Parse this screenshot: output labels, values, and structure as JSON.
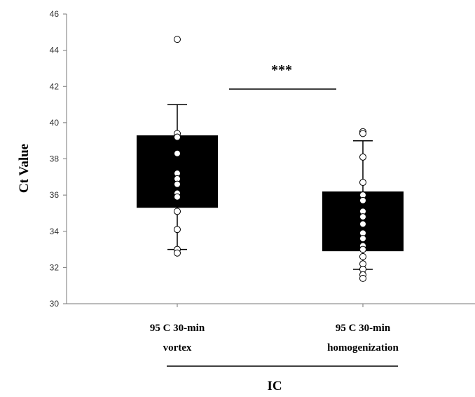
{
  "chart_data": {
    "type": "box",
    "ylabel": "Ct Value",
    "xlabel": "IC",
    "ylim": [
      30,
      46
    ],
    "yticks": [
      30,
      32,
      34,
      36,
      38,
      40,
      42,
      44,
      46
    ],
    "categories": [
      {
        "line1": "95 C 30-min",
        "line2": "vortex"
      },
      {
        "line1": "95 C 30-min",
        "line2": "homogenization"
      }
    ],
    "boxes": [
      {
        "q1": 35.3,
        "q3": 39.3,
        "whisker_low": 33.0,
        "whisker_high": 41.0
      },
      {
        "q1": 32.9,
        "q3": 36.2,
        "whisker_low": 31.9,
        "whisker_high": 39.0
      }
    ],
    "points": [
      [
        44.6,
        39.4,
        39.2,
        38.3,
        37.2,
        36.9,
        36.6,
        36.1,
        35.9,
        35.1,
        34.1,
        33.0,
        32.8
      ],
      [
        39.5,
        39.4,
        38.1,
        36.7,
        36.0,
        35.7,
        35.1,
        34.8,
        34.4,
        33.9,
        33.6,
        33.2,
        33.0,
        32.6,
        32.2,
        31.9,
        31.6,
        31.4
      ]
    ],
    "significance": "***",
    "grid": false,
    "legend": "none",
    "colors": {
      "box": "#000000",
      "point_fill": "#ffffff",
      "axis": "#777777"
    }
  }
}
